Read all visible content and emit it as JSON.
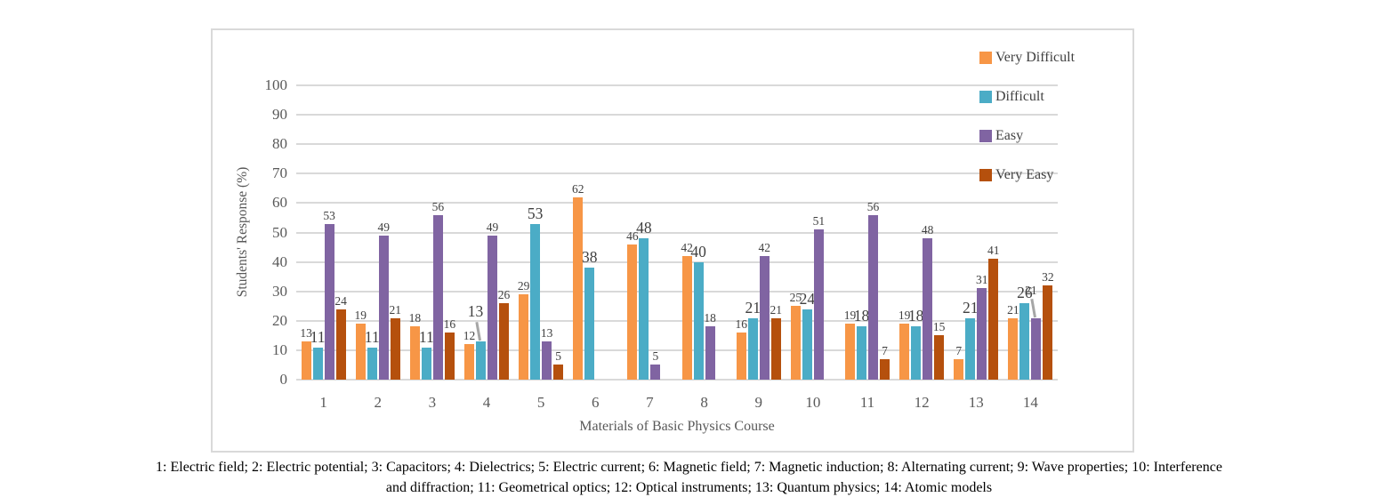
{
  "chart_data": {
    "type": "bar",
    "title": "",
    "xlabel": "Materials of Basic Physics Course",
    "ylabel": "Students' Response (%)",
    "ylim": [
      0,
      100
    ],
    "ytick_step": 10,
    "grid": "horizontal",
    "legend_position": "top-right-inside",
    "categories": [
      "1",
      "2",
      "3",
      "4",
      "5",
      "6",
      "7",
      "8",
      "9",
      "10",
      "11",
      "12",
      "13",
      "14"
    ],
    "series": [
      {
        "name": "Very Difficult",
        "color": "#F79646",
        "values": [
          13,
          19,
          18,
          12,
          29,
          62,
          46,
          42,
          16,
          25,
          19,
          19,
          7,
          21
        ]
      },
      {
        "name": "Difficult",
        "color": "#4BACC6",
        "values": [
          11,
          11,
          11,
          13,
          53,
          38,
          48,
          40,
          21,
          24,
          18,
          18,
          21,
          26
        ]
      },
      {
        "name": "Easy",
        "color": "#8064A2",
        "values": [
          53,
          49,
          56,
          49,
          13,
          0,
          5,
          18,
          42,
          51,
          56,
          48,
          31,
          21
        ]
      },
      {
        "name": "Very Easy",
        "color": "#B5500D",
        "values": [
          24,
          21,
          16,
          26,
          5,
          0,
          0,
          0,
          21,
          0,
          7,
          15,
          41,
          32
        ]
      }
    ],
    "label_callouts": [
      {
        "category": "4",
        "series": "Difficult"
      },
      {
        "category": "14",
        "series": "Easy"
      }
    ],
    "zero_values_hidden": true
  },
  "caption": {
    "line1": "1: Electric field; 2: Electric potential; 3: Capacitors; 4: Dielectrics; 5: Electric current; 6: Magnetic field; 7: Magnetic induction; 8: Alternating current; 9: Wave properties; 10: Interference",
    "line2": "and diffraction; 11: Geometrical optics; 12: Optical instruments; 13: Quantum physics; 14: Atomic models"
  },
  "colors": {
    "gridline": "#D9D9D9",
    "frame_border": "#D9D9D9",
    "axis_text": "#595959",
    "data_label": "#404040",
    "callout_line": "#A6A6A6"
  }
}
